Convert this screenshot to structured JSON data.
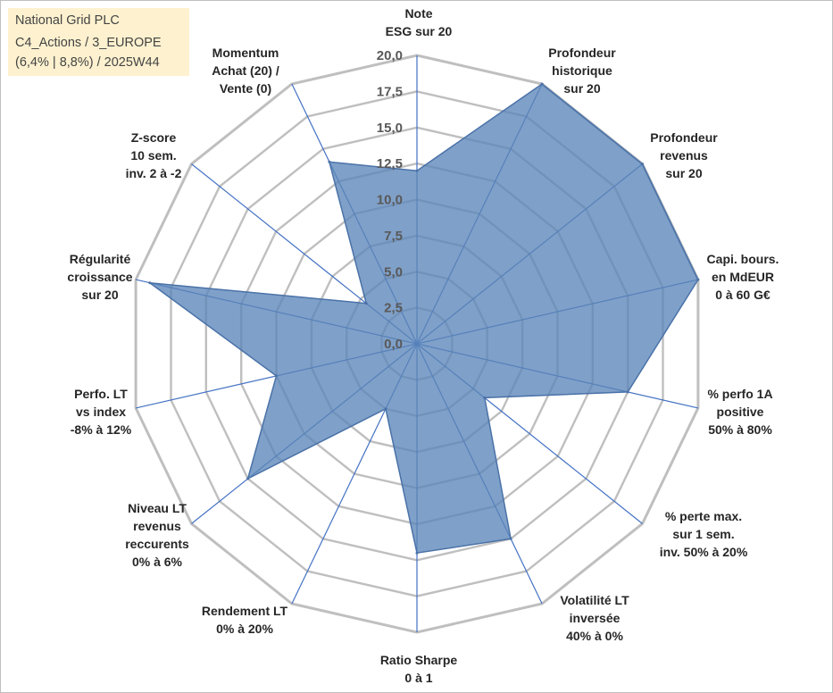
{
  "header": {
    "line1": "National Grid PLC",
    "line2": "C4_Actions / 3_EUROPE",
    "line3": "(6,4% | 8,8%) / 2025W44"
  },
  "colors": {
    "grid": "#bfbfbf",
    "axis": "#4472c4",
    "fill": "#5b85b8",
    "stroke": "#4a72a8",
    "title_bg": "#fdf1cf"
  },
  "chart_data": {
    "type": "radar",
    "title": "",
    "range": [
      0,
      20
    ],
    "ticks": [
      "0,0",
      "2,5",
      "5,0",
      "7,5",
      "10,0",
      "12,5",
      "15,0",
      "17,5",
      "20,0"
    ],
    "axes": [
      {
        "label": [
          "Note",
          "ESG sur 20"
        ],
        "value": 12.0
      },
      {
        "label": [
          "Profondeur",
          "historique",
          "sur 20"
        ],
        "value": 20.0
      },
      {
        "label": [
          "Profondeur",
          "revenus",
          "sur 20"
        ],
        "value": 20.0
      },
      {
        "label": [
          "Capi. bours.",
          "en MdEUR",
          "0 à 60 G€"
        ],
        "value": 20.0
      },
      {
        "label": [
          "% perfo 1A",
          "positive",
          "50% à 80%"
        ],
        "value": 15.0
      },
      {
        "label": [
          "% perte max.",
          "sur 1 sem.",
          "inv. 50% à 20%"
        ],
        "value": 6.0
      },
      {
        "label": [
          "Volatilité LT",
          "inversée",
          "40% à 0%"
        ],
        "value": 15.0
      },
      {
        "label": [
          "Ratio Sharpe",
          "0 à 1"
        ],
        "value": 14.5
      },
      {
        "label": [
          "Rendement LT",
          "0% à 20%"
        ],
        "value": 5.0
      },
      {
        "label": [
          "Niveau LT",
          "revenus",
          "reccurents",
          "0% à 6%"
        ],
        "value": 15.0
      },
      {
        "label": [
          "Perfo. LT",
          "vs index",
          "-8% à 12%"
        ],
        "value": 10.0
      },
      {
        "label": [
          "Régularité",
          "croissance",
          "sur 20"
        ],
        "value": 19.0
      },
      {
        "label": [
          "Z-score",
          "10 sem.",
          "inv. 2 à -2"
        ],
        "value": 4.5
      },
      {
        "label": [
          "Momentum",
          "Achat (20) /",
          "Vente (0)"
        ],
        "value": 14.0
      }
    ]
  }
}
